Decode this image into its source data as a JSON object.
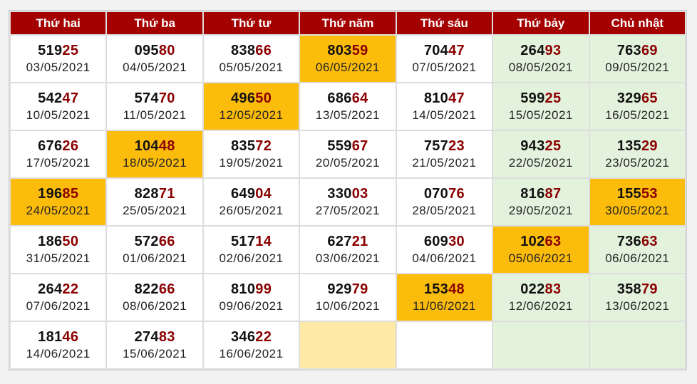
{
  "headers": [
    "Thứ hai",
    "Thứ ba",
    "Thứ tư",
    "Thứ năm",
    "Thứ sáu",
    "Thứ bảy",
    "Chủ nhật"
  ],
  "colors": {
    "header_bg": "#a50000",
    "header_text": "#ffffff",
    "highlight": "#fcbc0c",
    "pale_highlight": "#feeaa6",
    "weekend_bg": "#e3f2dd",
    "tail_digits": "#8b0000"
  },
  "rows": [
    [
      {
        "head": "519",
        "tail": "25",
        "date": "03/05/2021"
      },
      {
        "head": "095",
        "tail": "80",
        "date": "04/05/2021"
      },
      {
        "head": "838",
        "tail": "66",
        "date": "05/05/2021"
      },
      {
        "head": "803",
        "tail": "59",
        "date": "06/05/2021",
        "style": "hl"
      },
      {
        "head": "704",
        "tail": "47",
        "date": "07/05/2021"
      },
      {
        "head": "264",
        "tail": "93",
        "date": "08/05/2021"
      },
      {
        "head": "763",
        "tail": "69",
        "date": "09/05/2021"
      }
    ],
    [
      {
        "head": "542",
        "tail": "47",
        "date": "10/05/2021"
      },
      {
        "head": "574",
        "tail": "70",
        "date": "11/05/2021"
      },
      {
        "head": "496",
        "tail": "50",
        "date": "12/05/2021",
        "style": "hl"
      },
      {
        "head": "686",
        "tail": "64",
        "date": "13/05/2021"
      },
      {
        "head": "810",
        "tail": "47",
        "date": "14/05/2021"
      },
      {
        "head": "599",
        "tail": "25",
        "date": "15/05/2021"
      },
      {
        "head": "329",
        "tail": "65",
        "date": "16/05/2021"
      }
    ],
    [
      {
        "head": "676",
        "tail": "26",
        "date": "17/05/2021"
      },
      {
        "head": "104",
        "tail": "48",
        "date": "18/05/2021",
        "style": "hl"
      },
      {
        "head": "835",
        "tail": "72",
        "date": "19/05/2021"
      },
      {
        "head": "559",
        "tail": "67",
        "date": "20/05/2021"
      },
      {
        "head": "757",
        "tail": "23",
        "date": "21/05/2021"
      },
      {
        "head": "943",
        "tail": "25",
        "date": "22/05/2021"
      },
      {
        "head": "135",
        "tail": "29",
        "date": "23/05/2021"
      }
    ],
    [
      {
        "head": "196",
        "tail": "85",
        "date": "24/05/2021",
        "style": "hl"
      },
      {
        "head": "828",
        "tail": "71",
        "date": "25/05/2021"
      },
      {
        "head": "649",
        "tail": "04",
        "date": "26/05/2021"
      },
      {
        "head": "330",
        "tail": "03",
        "date": "27/05/2021"
      },
      {
        "head": "070",
        "tail": "76",
        "date": "28/05/2021"
      },
      {
        "head": "816",
        "tail": "87",
        "date": "29/05/2021"
      },
      {
        "head": "155",
        "tail": "53",
        "date": "30/05/2021",
        "style": "hl"
      }
    ],
    [
      {
        "head": "186",
        "tail": "50",
        "date": "31/05/2021"
      },
      {
        "head": "572",
        "tail": "66",
        "date": "01/06/2021"
      },
      {
        "head": "517",
        "tail": "14",
        "date": "02/06/2021"
      },
      {
        "head": "627",
        "tail": "21",
        "date": "03/06/2021"
      },
      {
        "head": "609",
        "tail": "30",
        "date": "04/06/2021"
      },
      {
        "head": "102",
        "tail": "63",
        "date": "05/06/2021",
        "style": "hl"
      },
      {
        "head": "736",
        "tail": "63",
        "date": "06/06/2021"
      }
    ],
    [
      {
        "head": "264",
        "tail": "22",
        "date": "07/06/2021"
      },
      {
        "head": "822",
        "tail": "66",
        "date": "08/06/2021"
      },
      {
        "head": "810",
        "tail": "99",
        "date": "09/06/2021"
      },
      {
        "head": "929",
        "tail": "79",
        "date": "10/06/2021"
      },
      {
        "head": "153",
        "tail": "48",
        "date": "11/06/2021",
        "style": "hl"
      },
      {
        "head": "022",
        "tail": "83",
        "date": "12/06/2021"
      },
      {
        "head": "358",
        "tail": "79",
        "date": "13/06/2021"
      }
    ],
    [
      {
        "head": "181",
        "tail": "46",
        "date": "14/06/2021"
      },
      {
        "head": "274",
        "tail": "83",
        "date": "15/06/2021"
      },
      {
        "head": "346",
        "tail": "22",
        "date": "16/06/2021"
      },
      {
        "style": "pale"
      },
      {},
      {},
      {}
    ]
  ]
}
